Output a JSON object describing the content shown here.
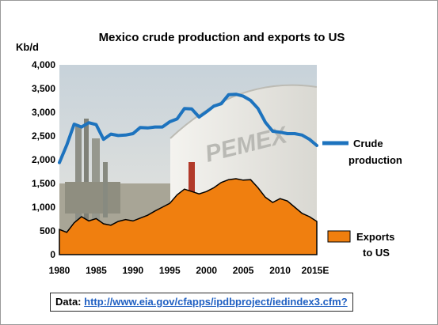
{
  "chart_data": {
    "type": "line+area",
    "title": "Mexico crude production and exports to US",
    "ylabel": "Kb/d",
    "xlabel": "",
    "ylim": [
      0,
      4000
    ],
    "yticks": [
      "0",
      "500",
      "1,000",
      "1,500",
      "2,000",
      "2,500",
      "3,000",
      "3,500",
      "4,000"
    ],
    "xticks": [
      "1980",
      "1985",
      "1990",
      "1995",
      "2000",
      "2005",
      "2010",
      "2015E"
    ],
    "x": [
      1980,
      1981,
      1982,
      1983,
      1984,
      1985,
      1986,
      1987,
      1988,
      1989,
      1990,
      1991,
      1992,
      1993,
      1994,
      1995,
      1996,
      1997,
      1998,
      1999,
      2000,
      2001,
      2002,
      2003,
      2004,
      2005,
      2006,
      2007,
      2008,
      2009,
      2010,
      2011,
      2012,
      2013,
      2014,
      2015
    ],
    "series": [
      {
        "name": "Crude production",
        "type": "line",
        "color": "#1d73be",
        "values": [
          1940,
          2310,
          2750,
          2690,
          2780,
          2740,
          2430,
          2540,
          2510,
          2520,
          2550,
          2680,
          2670,
          2690,
          2690,
          2800,
          2860,
          3080,
          3070,
          2900,
          3010,
          3130,
          3180,
          3370,
          3380,
          3340,
          3250,
          3080,
          2790,
          2600,
          2580,
          2550,
          2550,
          2520,
          2430,
          2300
        ]
      },
      {
        "name": "Exports to US",
        "type": "area",
        "color": "#f07f0f",
        "values": [
          530,
          470,
          670,
          800,
          710,
          760,
          650,
          620,
          700,
          740,
          710,
          770,
          830,
          920,
          1000,
          1080,
          1260,
          1380,
          1330,
          1280,
          1330,
          1410,
          1520,
          1580,
          1600,
          1570,
          1580,
          1410,
          1210,
          1100,
          1180,
          1130,
          1000,
          870,
          800,
          700
        ]
      }
    ],
    "legend": [
      {
        "label_line1": "Crude",
        "label_line2": "production",
        "position": "right"
      },
      {
        "label_line1": "Exports",
        "label_line2": "to US",
        "position": "bottom-right"
      }
    ],
    "background_image": "pemex-refinery-photo",
    "photo_text": "PEMEX"
  },
  "source": {
    "label": "Data:",
    "url": "http://www.eia.gov/cfapps/ipdbproject/iedindex3.cfm?"
  }
}
